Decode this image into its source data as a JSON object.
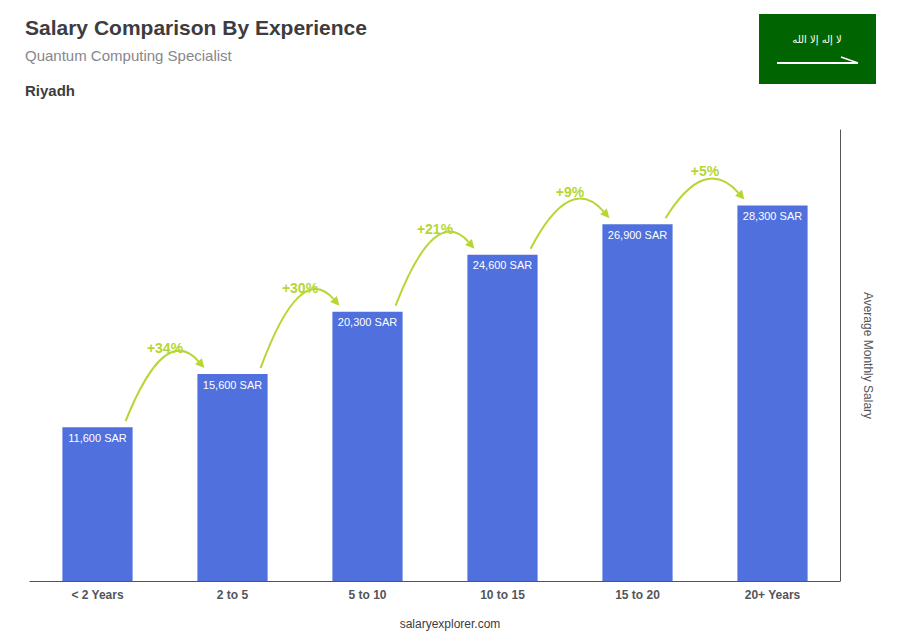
{
  "chart_data": {
    "type": "bar",
    "title": "Salary Comparison By Experience",
    "subtitle": "Quantum Computing Specialist",
    "annotations": [
      "Riyadh",
      "salaryexplorer.com",
      "لا إله إلا الله"
    ],
    "ylabel": "Average Monthly Salary",
    "categories": [
      "< 2 Years",
      "2 to 5",
      "5 to 10",
      "10 to 15",
      "15 to 20",
      "20+ Years"
    ],
    "values": [
      11600,
      15600,
      20300,
      24600,
      26900,
      28300
    ],
    "value_labels": [
      "11,600 SAR",
      "15,600 SAR",
      "20,300 SAR",
      "24,600 SAR",
      "26,900 SAR",
      "28,300 SAR"
    ],
    "data_labels": true,
    "changes": [
      34,
      30,
      21,
      9,
      5
    ],
    "change_labels": [
      "+34%",
      "+30%",
      "+21%",
      "+9%",
      "+5%"
    ],
    "ylim": [
      0,
      34000
    ],
    "grid": false,
    "tick_labels": "x"
  }
}
